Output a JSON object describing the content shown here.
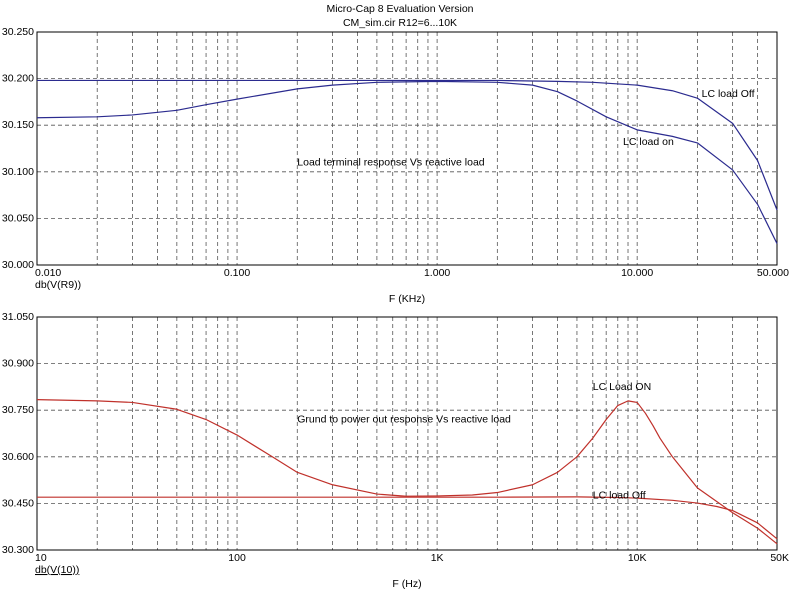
{
  "header": {
    "title": "Micro-Cap 8 Evaluation Version",
    "subtitle": "CM_sim.cir R12=6...10K"
  },
  "colors": {
    "top_series": "#2b2b8f",
    "bottom_series": "#c0312b",
    "grid": "#555555",
    "background": "#ffffff"
  },
  "chart_data": [
    {
      "type": "line",
      "x_scale": "log",
      "xlim": [
        0.01,
        50
      ],
      "ylim": [
        30.0,
        30.25
      ],
      "grid": true,
      "xlabel": "F (KHz)",
      "ylabel": "db(V(R9))",
      "x_tick_labels": [
        {
          "x": 0.01,
          "label": "0.010"
        },
        {
          "x": 0.1,
          "label": "0.100"
        },
        {
          "x": 1,
          "label": "1.000"
        },
        {
          "x": 10,
          "label": "10.000"
        },
        {
          "x": 50,
          "label": "50.000"
        }
      ],
      "y_tick_labels": [
        {
          "y": 30.0,
          "label": "30.000"
        },
        {
          "y": 30.05,
          "label": "30.050"
        },
        {
          "y": 30.1,
          "label": "30.100"
        },
        {
          "y": 30.15,
          "label": "30.150"
        },
        {
          "y": 30.2,
          "label": "30.200"
        },
        {
          "y": 30.25,
          "label": "30.250"
        }
      ],
      "annotations": [
        {
          "text": "Load terminal response Vs reactive load",
          "x": 0.2,
          "y": 30.107
        },
        {
          "text": "LC load Off",
          "x": 21,
          "y": 30.18
        },
        {
          "text": "LC load on",
          "x": 8.5,
          "y": 30.129
        }
      ],
      "series": [
        {
          "color": "#2b2b8f",
          "x": [
            0.01,
            0.1,
            1,
            2,
            4,
            6,
            10,
            15,
            20,
            30,
            40,
            50
          ],
          "y": [
            30.198,
            30.198,
            30.198,
            30.198,
            30.197,
            30.196,
            30.193,
            30.187,
            30.179,
            30.152,
            30.112,
            30.059
          ]
        },
        {
          "color": "#2b2b8f",
          "x": [
            0.01,
            0.02,
            0.03,
            0.05,
            0.07,
            0.1,
            0.2,
            0.3,
            0.5,
            1,
            2,
            3,
            4,
            5,
            7,
            10,
            15,
            20,
            30,
            40,
            50
          ],
          "y": [
            30.158,
            30.159,
            30.161,
            30.166,
            30.172,
            30.178,
            30.189,
            30.193,
            30.196,
            30.197,
            30.196,
            30.193,
            30.186,
            30.176,
            30.159,
            30.145,
            30.138,
            30.131,
            30.102,
            30.065,
            30.023
          ]
        }
      ]
    },
    {
      "type": "line",
      "x_scale": "log",
      "xlim": [
        10,
        50000
      ],
      "ylim": [
        30.3,
        31.05
      ],
      "grid": true,
      "xlabel": "F (Hz)",
      "ylabel": "db(V(10))",
      "x_tick_labels": [
        {
          "x": 10,
          "label": "10"
        },
        {
          "x": 100,
          "label": "100"
        },
        {
          "x": 1000,
          "label": "1K"
        },
        {
          "x": 10000,
          "label": "10K"
        },
        {
          "x": 50000,
          "label": "50K"
        }
      ],
      "y_tick_labels": [
        {
          "y": 30.3,
          "label": "30.300"
        },
        {
          "y": 30.45,
          "label": "30.450"
        },
        {
          "y": 30.6,
          "label": "30.600"
        },
        {
          "y": 30.75,
          "label": "30.750"
        },
        {
          "y": 30.9,
          "label": "30.900"
        },
        {
          "y": 31.05,
          "label": "31.050"
        }
      ],
      "annotations": [
        {
          "text": "Grund to power out response Vs reactive load",
          "x": 200,
          "y": 30.71
        },
        {
          "text": "LC Load ON",
          "x": 6000,
          "y": 30.815
        },
        {
          "text": "LC load Off",
          "x": 6000,
          "y": 30.465
        }
      ],
      "series": [
        {
          "color": "#c0312b",
          "x": [
            10,
            20,
            30,
            50,
            70,
            100,
            150,
            200,
            300,
            500,
            700,
            1000,
            1500,
            2000,
            3000,
            4000,
            5000,
            6000,
            7000,
            8000,
            9000,
            10000,
            11000,
            12000,
            13000,
            15000,
            20000,
            30000,
            40000,
            50000
          ],
          "y": [
            30.784,
            30.78,
            30.775,
            30.753,
            30.72,
            30.67,
            30.6,
            30.55,
            30.51,
            30.48,
            30.473,
            30.474,
            30.477,
            30.485,
            30.51,
            30.55,
            30.6,
            30.66,
            30.72,
            30.765,
            30.78,
            30.775,
            30.74,
            30.7,
            30.66,
            30.6,
            30.5,
            30.42,
            30.37,
            30.32
          ]
        },
        {
          "color": "#c0312b",
          "x": [
            10,
            100,
            1000,
            2000,
            5000,
            8000,
            10000,
            15000,
            20000,
            25000,
            30000,
            40000,
            50000
          ],
          "y": [
            30.47,
            30.47,
            30.47,
            30.47,
            30.471,
            30.469,
            30.467,
            30.46,
            30.451,
            30.44,
            30.427,
            30.387,
            30.336
          ]
        }
      ]
    }
  ]
}
